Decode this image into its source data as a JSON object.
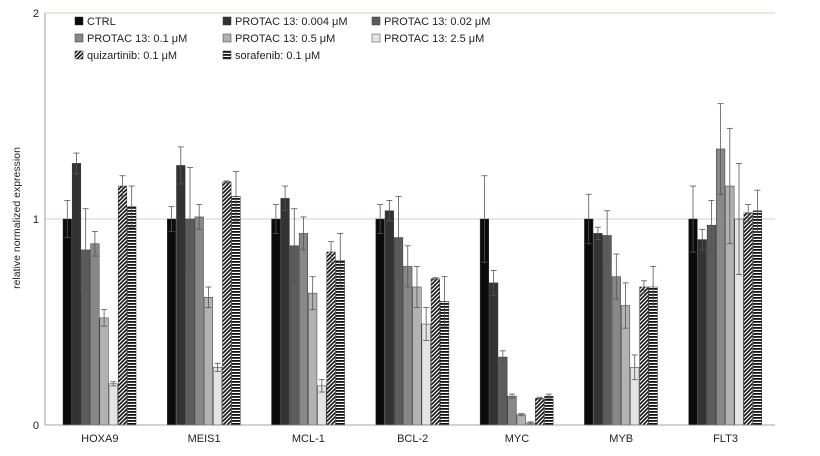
{
  "chart_data": {
    "type": "bar",
    "title": "",
    "xlabel": "",
    "ylabel": "relative normalized expression",
    "ylim": [
      0,
      2
    ],
    "yticks": [
      0,
      1,
      2
    ],
    "grid": "horizontal",
    "legend_position": "top-left",
    "categories": [
      "HOXA9",
      "MEIS1",
      "MCL-1",
      "BCL-2",
      "MYC",
      "MYB",
      "FLT3"
    ],
    "series": [
      {
        "name": "CTRL",
        "pattern": "solid",
        "color": "#0b0b0b",
        "values": [
          1.0,
          1.0,
          1.0,
          1.0,
          1.0,
          1.0,
          1.0
        ],
        "errors": [
          0.09,
          0.06,
          0.07,
          0.07,
          0.21,
          0.12,
          0.16
        ]
      },
      {
        "name": "PROTAC 13: 0.004 μM",
        "pattern": "solid",
        "color": "#333333",
        "values": [
          1.27,
          1.26,
          1.1,
          1.04,
          0.69,
          0.93,
          0.9
        ],
        "errors": [
          0.05,
          0.09,
          0.06,
          0.05,
          0.06,
          0.03,
          0.05
        ]
      },
      {
        "name": "PROTAC 13: 0.02 μM",
        "pattern": "solid",
        "color": "#5c5c5c",
        "values": [
          0.85,
          1.0,
          0.87,
          0.91,
          0.33,
          0.92,
          0.97
        ],
        "errors": [
          0.2,
          0.25,
          0.18,
          0.2,
          0.03,
          0.12,
          0.12
        ]
      },
      {
        "name": "PROTAC 13: 0.1 μM",
        "pattern": "solid",
        "color": "#888888",
        "values": [
          0.88,
          1.01,
          0.93,
          0.77,
          0.14,
          0.72,
          1.34
        ],
        "errors": [
          0.06,
          0.06,
          0.08,
          0.1,
          0.01,
          0.11,
          0.22
        ]
      },
      {
        "name": "PROTAC 13: 0.5 μM",
        "pattern": "solid",
        "color": "#b2b2b2",
        "values": [
          0.52,
          0.62,
          0.64,
          0.67,
          0.05,
          0.58,
          1.16
        ],
        "errors": [
          0.04,
          0.05,
          0.08,
          0.1,
          0.005,
          0.11,
          0.28
        ]
      },
      {
        "name": "PROTAC 13: 2.5 μM",
        "pattern": "solid",
        "color": "#e4e4e4",
        "values": [
          0.2,
          0.28,
          0.19,
          0.49,
          0.01,
          0.28,
          1.0
        ],
        "errors": [
          0.01,
          0.02,
          0.03,
          0.08,
          0.005,
          0.06,
          0.27
        ]
      },
      {
        "name": "quizartinib: 0.1 μM",
        "pattern": "diagonal",
        "color": "#111111",
        "values": [
          1.16,
          1.18,
          0.84,
          0.71,
          0.13,
          0.67,
          1.03
        ],
        "errors": [
          0.05,
          0.005,
          0.05,
          0.005,
          0.005,
          0.03,
          0.04
        ]
      },
      {
        "name": "sorafenib: 0.1 μM",
        "pattern": "horizontal",
        "color": "#111111",
        "values": [
          1.06,
          1.11,
          0.8,
          0.6,
          0.14,
          0.67,
          1.04
        ],
        "errors": [
          0.1,
          0.12,
          0.13,
          0.12,
          0.01,
          0.1,
          0.1
        ]
      }
    ]
  }
}
